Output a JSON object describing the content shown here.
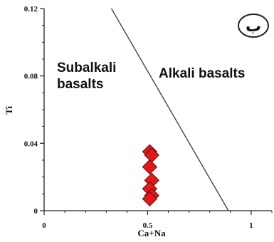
{
  "chart_data": {
    "type": "scatter",
    "xlabel": "Ca+Na",
    "ylabel": "Ti",
    "xlim": [
      0,
      1.1
    ],
    "ylim": [
      0,
      0.12
    ],
    "x_ticks": [
      0,
      0.5,
      1
    ],
    "x_tick_labels": [
      "0",
      "0.5",
      "1"
    ],
    "y_ticks": [
      0,
      0.04,
      0.08,
      0.12
    ],
    "y_tick_labels": [
      "0",
      "0.04",
      "0.08",
      "0.12"
    ],
    "grid": false,
    "panel_label": "ب",
    "regions": [
      {
        "name": "Subalkali basalts",
        "lines": [
          "Subalkali",
          "basalts"
        ]
      },
      {
        "name": "Alkali basalts",
        "lines": [
          "Alkali basalts"
        ]
      }
    ],
    "boundary_line": {
      "x": [
        0.325,
        0.89
      ],
      "y": [
        0.12,
        0
      ]
    },
    "points": {
      "marker": "diamond",
      "color": "#e0191a",
      "x": [
        0.51,
        0.52,
        0.51,
        0.52,
        0.51,
        0.52,
        0.51
      ],
      "y": [
        0.035,
        0.033,
        0.026,
        0.018,
        0.013,
        0.009,
        0.007
      ]
    }
  }
}
